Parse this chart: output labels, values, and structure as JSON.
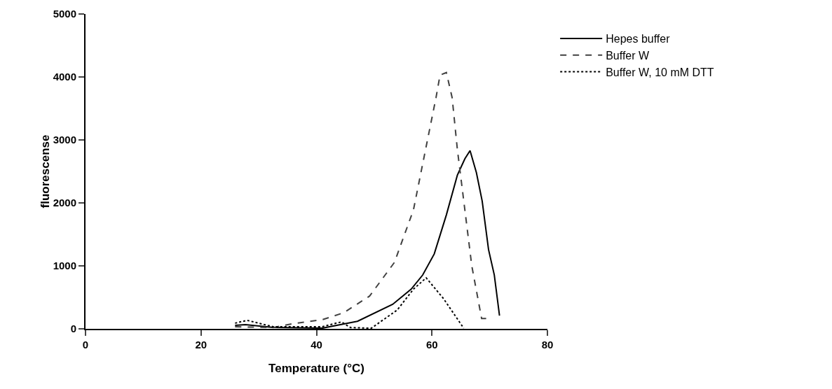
{
  "chart_data": {
    "type": "line",
    "xlabel": "Temperature (°C)",
    "ylabel": "fluorescense",
    "xlim": [
      0,
      80
    ],
    "xticks": [
      0,
      20,
      40,
      60,
      80
    ],
    "ylim": [
      0,
      5000
    ],
    "yticks": [
      0,
      1000,
      2000,
      3000,
      4000,
      5000
    ],
    "grid": false,
    "legend": "top right",
    "marker": "none",
    "series": [
      {
        "name": "Hepes buffer",
        "color": "#000000",
        "line_style": "solid",
        "x": [
          25.9,
          27.7,
          32.5,
          41.0,
          47.1,
          53.2,
          56.4,
          58.4,
          60.4,
          62.5,
          64.4,
          65.7,
          66.6,
          67.7,
          68.7,
          69.8,
          70.8,
          71.7
        ],
        "values": [
          55,
          67,
          22,
          10,
          120,
          390,
          630,
          855,
          1190,
          1810,
          2440,
          2700,
          2830,
          2480,
          2030,
          1260,
          855,
          210
        ]
      },
      {
        "name": "Buffer W",
        "color": "#404040",
        "line_style": "dashed",
        "x": [
          25.9,
          32.5,
          35.8,
          41.0,
          44.7,
          49.2,
          53.5,
          56.8,
          58.9,
          60.7,
          61.4,
          62.5,
          63.5,
          64.4,
          65.7,
          66.9,
          68.6,
          69.5
        ],
        "values": [
          33,
          20,
          80,
          145,
          255,
          520,
          1055,
          1890,
          2850,
          3670,
          4030,
          4070,
          3670,
          2850,
          1890,
          1000,
          165,
          165
        ]
      },
      {
        "name": "Buffer W, 10 mM DTT",
        "color": "#000000",
        "line_style": "dotted",
        "x": [
          25.9,
          28.0,
          32.5,
          41.0,
          44.3,
          45.9,
          49.5,
          54.0,
          56.8,
          59.0,
          62.0,
          65.5
        ],
        "values": [
          90,
          135,
          33,
          33,
          110,
          20,
          10,
          300,
          630,
          810,
          480,
          10
        ]
      }
    ]
  }
}
